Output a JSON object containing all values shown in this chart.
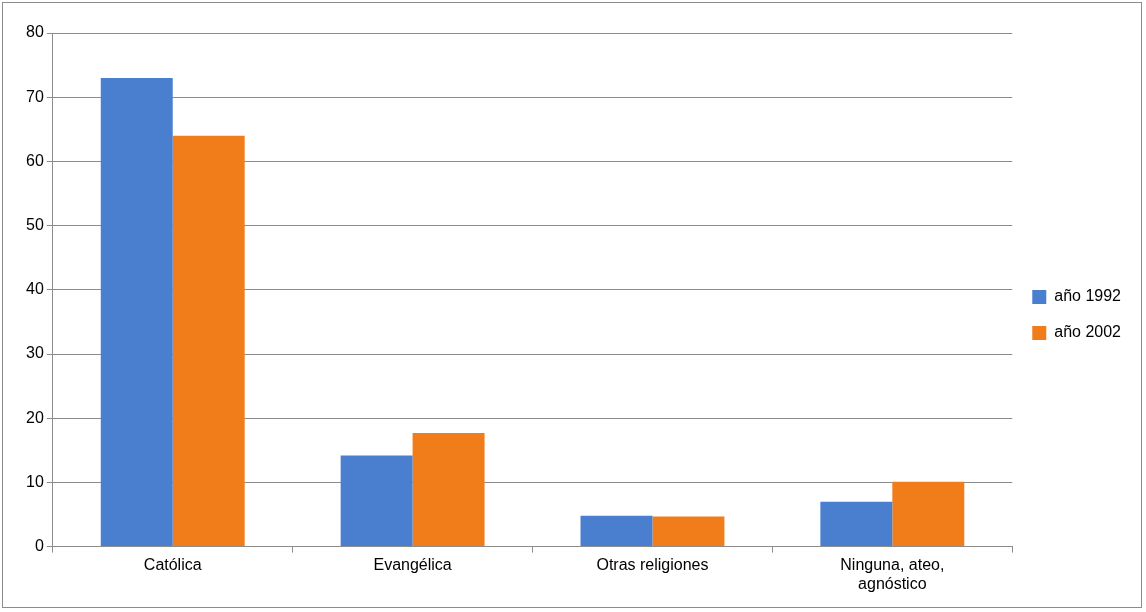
{
  "chart_data": {
    "type": "bar",
    "categories": [
      "Católica",
      "Evangélica",
      "Otras religiones",
      "Ninguna, ateo, agnóstico"
    ],
    "series": [
      {
        "name": "año 1992",
        "color": "#4a7fcf",
        "values": [
          73,
          14.2,
          4.8,
          7.0
        ]
      },
      {
        "name": "año 2002",
        "color": "#f07d1a",
        "values": [
          64,
          17.7,
          4.7,
          10.1
        ]
      }
    ],
    "ylim": [
      0,
      80
    ],
    "yticks": [
      0,
      10,
      20,
      30,
      40,
      50,
      60,
      70,
      80
    ],
    "grid": "y",
    "legend": "right"
  }
}
